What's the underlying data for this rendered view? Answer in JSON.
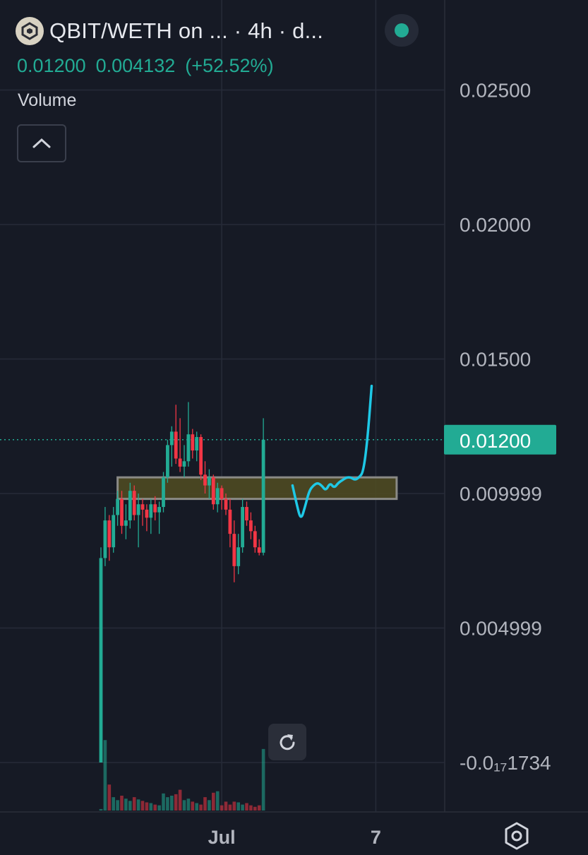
{
  "header": {
    "title": "QBIT/WETH on ... · 4h · d...",
    "logo_icon": "qbit-logo-icon",
    "live_icon": "live-status-dot-icon"
  },
  "quote": {
    "last": "0.01200",
    "change": "0.004132",
    "change_pct": "(+52.52%)"
  },
  "volume_label": "Volume",
  "colors": {
    "background": "#161a25",
    "up": "#22ab94",
    "down": "#f23645",
    "grid": "#262b38",
    "zone_fill": "#4e4a22",
    "zone_border": "#8a8a86",
    "drawing": "#1ec8e6"
  },
  "chart_data": {
    "type": "candlestick",
    "timeframe": "4h",
    "price_axis": {
      "ticks": [
        {
          "value": 0.025,
          "label": "0.02500"
        },
        {
          "value": 0.02,
          "label": "0.02000"
        },
        {
          "value": 0.015,
          "label": "0.01500"
        },
        {
          "value": 0.01,
          "label": "0.009999"
        },
        {
          "value": 0.005,
          "label": "0.004999"
        },
        {
          "value": 0.0,
          "label": "-0.0₁₇1734"
        }
      ],
      "current_price": 0.012,
      "current_price_label": "0.01200"
    },
    "time_axis": {
      "ticks": [
        {
          "index": 29,
          "label": "Jul"
        },
        {
          "index": 66,
          "label": "7"
        }
      ]
    },
    "candles": [
      {
        "o": 0.0,
        "h": 0.008,
        "l": 0.0,
        "c": 0.0076
      },
      {
        "o": 0.0076,
        "h": 0.0095,
        "l": 0.0073,
        "c": 0.009
      },
      {
        "o": 0.009,
        "h": 0.0092,
        "l": 0.0075,
        "c": 0.008
      },
      {
        "o": 0.008,
        "h": 0.0095,
        "l": 0.0078,
        "c": 0.0092
      },
      {
        "o": 0.0092,
        "h": 0.0101,
        "l": 0.0088,
        "c": 0.0098
      },
      {
        "o": 0.0098,
        "h": 0.0101,
        "l": 0.0085,
        "c": 0.0088
      },
      {
        "o": 0.0088,
        "h": 0.0096,
        "l": 0.0083,
        "c": 0.009
      },
      {
        "o": 0.009,
        "h": 0.0104,
        "l": 0.0087,
        "c": 0.0101
      },
      {
        "o": 0.0101,
        "h": 0.0103,
        "l": 0.009,
        "c": 0.0092
      },
      {
        "o": 0.0092,
        "h": 0.01,
        "l": 0.008,
        "c": 0.0096
      },
      {
        "o": 0.0096,
        "h": 0.0098,
        "l": 0.0088,
        "c": 0.0094
      },
      {
        "o": 0.0094,
        "h": 0.0096,
        "l": 0.0086,
        "c": 0.0091
      },
      {
        "o": 0.0091,
        "h": 0.0098,
        "l": 0.0085,
        "c": 0.0096
      },
      {
        "o": 0.0096,
        "h": 0.0099,
        "l": 0.009,
        "c": 0.0093
      },
      {
        "o": 0.0093,
        "h": 0.0097,
        "l": 0.0085,
        "c": 0.0095
      },
      {
        "o": 0.0095,
        "h": 0.0108,
        "l": 0.0093,
        "c": 0.0106
      },
      {
        "o": 0.0106,
        "h": 0.012,
        "l": 0.0104,
        "c": 0.0118
      },
      {
        "o": 0.0118,
        "h": 0.0125,
        "l": 0.011,
        "c": 0.0123
      },
      {
        "o": 0.0123,
        "h": 0.0133,
        "l": 0.0111,
        "c": 0.0113
      },
      {
        "o": 0.0113,
        "h": 0.0128,
        "l": 0.0108,
        "c": 0.011
      },
      {
        "o": 0.011,
        "h": 0.0118,
        "l": 0.0106,
        "c": 0.0112
      },
      {
        "o": 0.0112,
        "h": 0.0134,
        "l": 0.011,
        "c": 0.0122
      },
      {
        "o": 0.0122,
        "h": 0.0124,
        "l": 0.0113,
        "c": 0.0116
      },
      {
        "o": 0.0116,
        "h": 0.0123,
        "l": 0.0112,
        "c": 0.0121
      },
      {
        "o": 0.0121,
        "h": 0.0122,
        "l": 0.0105,
        "c": 0.0107
      },
      {
        "o": 0.0107,
        "h": 0.0112,
        "l": 0.01,
        "c": 0.0103
      },
      {
        "o": 0.0103,
        "h": 0.0109,
        "l": 0.0098,
        "c": 0.0106
      },
      {
        "o": 0.0106,
        "h": 0.0107,
        "l": 0.0094,
        "c": 0.0096
      },
      {
        "o": 0.0096,
        "h": 0.0104,
        "l": 0.0093,
        "c": 0.0102
      },
      {
        "o": 0.0102,
        "h": 0.0103,
        "l": 0.0094,
        "c": 0.0098
      },
      {
        "o": 0.0098,
        "h": 0.01,
        "l": 0.0092,
        "c": 0.0094
      },
      {
        "o": 0.0094,
        "h": 0.0098,
        "l": 0.008,
        "c": 0.0085
      },
      {
        "o": 0.0085,
        "h": 0.009,
        "l": 0.0067,
        "c": 0.0073
      },
      {
        "o": 0.0073,
        "h": 0.0085,
        "l": 0.007,
        "c": 0.008
      },
      {
        "o": 0.008,
        "h": 0.0098,
        "l": 0.0078,
        "c": 0.0095
      },
      {
        "o": 0.0095,
        "h": 0.0097,
        "l": 0.0088,
        "c": 0.009
      },
      {
        "o": 0.009,
        "h": 0.0093,
        "l": 0.0083,
        "c": 0.0086
      },
      {
        "o": 0.0086,
        "h": 0.0088,
        "l": 0.0078,
        "c": 0.008
      },
      {
        "o": 0.008,
        "h": 0.0083,
        "l": 0.0077,
        "c": 0.0078
      },
      {
        "o": 0.0078,
        "h": 0.0128,
        "l": 0.0077,
        "c": 0.012
      }
    ],
    "volume": [
      0.02,
      0.95,
      0.35,
      0.18,
      0.14,
      0.2,
      0.16,
      0.13,
      0.18,
      0.15,
      0.13,
      0.11,
      0.1,
      0.08,
      0.07,
      0.23,
      0.18,
      0.2,
      0.22,
      0.28,
      0.14,
      0.16,
      0.12,
      0.1,
      0.08,
      0.18,
      0.14,
      0.24,
      0.26,
      0.07,
      0.12,
      0.08,
      0.12,
      0.11,
      0.08,
      0.1,
      0.07,
      0.05,
      0.07,
      0.83
    ],
    "annotations": [
      {
        "type": "rectangle",
        "price_top": 0.0106,
        "price_bottom": 0.0098,
        "from_index": 4,
        "to_index": 71
      },
      {
        "type": "freehand_projection",
        "points": [
          [
            46,
            0.0103
          ],
          [
            47,
            0.0096
          ],
          [
            48,
            0.009
          ],
          [
            49,
            0.0095
          ],
          [
            50,
            0.0101
          ],
          [
            51,
            0.0103
          ],
          [
            52,
            0.0104
          ],
          [
            53,
            0.0103
          ],
          [
            54,
            0.0101
          ],
          [
            55,
            0.0104
          ],
          [
            56,
            0.0102
          ],
          [
            57,
            0.0104
          ],
          [
            58,
            0.0105
          ],
          [
            59,
            0.0106
          ],
          [
            60,
            0.0106
          ],
          [
            61,
            0.0105
          ],
          [
            62,
            0.0106
          ],
          [
            63,
            0.0108
          ],
          [
            64,
            0.012
          ],
          [
            65,
            0.014
          ]
        ]
      }
    ]
  }
}
